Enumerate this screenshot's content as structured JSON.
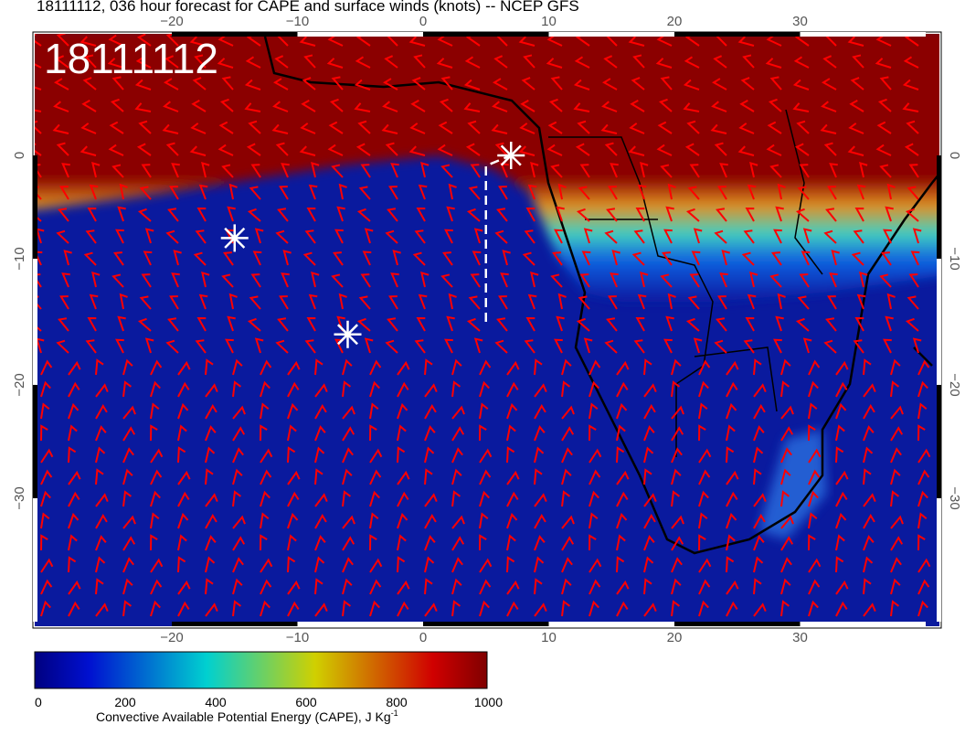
{
  "title": "18111112, 036 hour forecast for CAPE and surface winds (knots) -- NCEP GFS",
  "stamp": "18111112",
  "map": {
    "lon_ticks": [
      "−20",
      "−10",
      "0",
      "10",
      "20",
      "30"
    ],
    "lat_ticks": [
      "0",
      "−10",
      "−20",
      "−30"
    ],
    "barb_color": "#ff0000",
    "markers": [
      {
        "lon": -15,
        "lat": -8
      },
      {
        "lon": -6,
        "lat": -16
      },
      {
        "lon": 7,
        "lat": 0
      }
    ],
    "dashed_track": {
      "lon": 5,
      "lat_from": -1,
      "lat_to": -15
    }
  },
  "colorbar": {
    "labels": [
      "0",
      "200",
      "400",
      "600",
      "800",
      "1000"
    ],
    "title": "Convective Available Potential Energy (CAPE), J Kg",
    "title_sup": "-1",
    "colors": [
      "#000080",
      "#0010d0",
      "#00d0d0",
      "#d0d000",
      "#d00000",
      "#800000"
    ]
  }
}
